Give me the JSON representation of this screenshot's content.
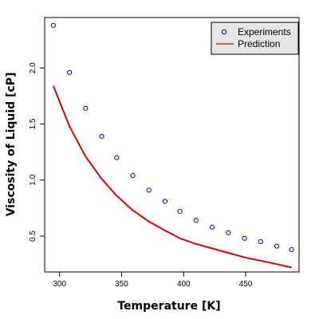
{
  "chart_data": {
    "type": "scatter",
    "title": "",
    "xlabel": "Temperature [K]",
    "ylabel": "Viscosity of Liquid [cP]",
    "xlim": [
      288,
      493
    ],
    "ylim": [
      0.18,
      2.45
    ],
    "xticks": [
      300,
      350,
      400,
      450
    ],
    "yticks": [
      0.5,
      1.0,
      1.5,
      2.0
    ],
    "xtick_labels": [
      "300",
      "350",
      "400",
      "450"
    ],
    "ytick_labels": [
      "0.5",
      "1.0",
      "1.5",
      "2.0"
    ],
    "grid": false,
    "legend_position": "top-right",
    "series": [
      {
        "name": "Experiments",
        "kind": "points",
        "color": "#0000cc",
        "x": [
          295,
          308,
          321,
          334,
          346,
          359,
          372,
          385,
          397,
          410,
          423,
          436,
          449,
          462,
          475,
          487
        ],
        "y": [
          2.38,
          1.96,
          1.64,
          1.39,
          1.2,
          1.04,
          0.91,
          0.81,
          0.72,
          0.64,
          0.58,
          0.53,
          0.48,
          0.45,
          0.41,
          0.38
        ]
      },
      {
        "name": "Prediction",
        "kind": "line",
        "color": "#dd0000",
        "x": [
          295,
          308,
          321,
          334,
          346,
          359,
          372,
          385,
          397,
          410,
          423,
          436,
          449,
          462,
          475,
          487
        ],
        "y": [
          1.84,
          1.48,
          1.21,
          1.01,
          0.86,
          0.73,
          0.63,
          0.55,
          0.48,
          0.43,
          0.39,
          0.35,
          0.31,
          0.28,
          0.25,
          0.22
        ]
      }
    ]
  }
}
